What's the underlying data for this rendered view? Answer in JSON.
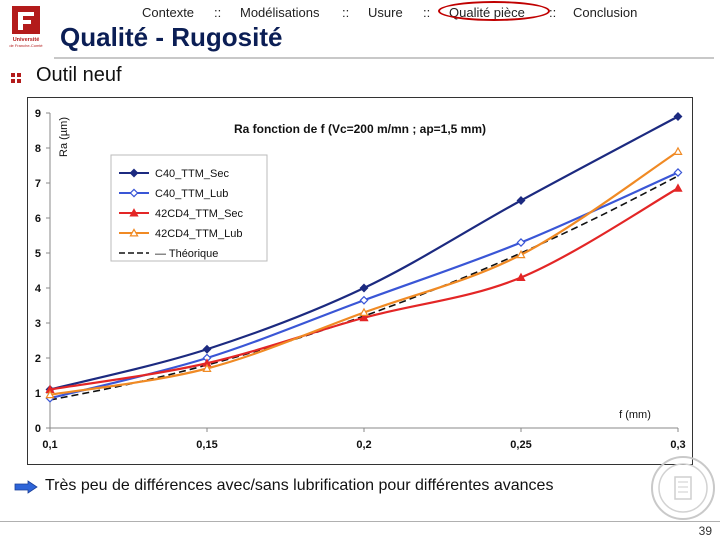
{
  "nav": {
    "items": [
      "Contexte",
      "Modélisations",
      "Usure",
      "Qualité pièce",
      "Conclusion"
    ],
    "separator": "::"
  },
  "title": "Qualité - Rugosité",
  "subtitle": "Outil neuf",
  "logo_text": [
    "Université",
    "de Franche-Comté"
  ],
  "conclusion": "Très peu de différences avec/sans lubrification pour différentes avances",
  "page_number": "39",
  "chart_data": {
    "type": "line",
    "title": "Ra fonction de f (Vc=200 m/mn ; ap=1,5 mm)",
    "xlabel": "f (mm)",
    "ylabel": "Ra (µm)",
    "xlim": [
      0.1,
      0.3
    ],
    "ylim": [
      0,
      9
    ],
    "x_ticks": [
      "0,1",
      "0,15",
      "0,2",
      "0,25",
      "0,3"
    ],
    "y_ticks": [
      "0",
      "1",
      "2",
      "3",
      "4",
      "5",
      "6",
      "7",
      "8",
      "9"
    ],
    "grid": false,
    "legend_position": "top-left",
    "series": [
      {
        "name": "C40_TTM_Sec",
        "color": "#1c2a80",
        "marker": "diamond",
        "dashed": false,
        "x": [
          0.1,
          0.15,
          0.2,
          0.25,
          0.3
        ],
        "values": [
          1.1,
          2.25,
          4.0,
          6.5,
          8.9
        ]
      },
      {
        "name": "C40_TTM_Lub",
        "color": "#3a56d6",
        "marker": "diamond-open",
        "dashed": false,
        "x": [
          0.1,
          0.15,
          0.2,
          0.25,
          0.3
        ],
        "values": [
          0.85,
          2.0,
          3.65,
          5.3,
          7.3
        ]
      },
      {
        "name": "42CD4_TTM_Sec",
        "color": "#e32626",
        "marker": "triangle",
        "dashed": false,
        "x": [
          0.1,
          0.15,
          0.2,
          0.25,
          0.3
        ],
        "values": [
          1.1,
          1.85,
          3.15,
          4.3,
          6.85
        ]
      },
      {
        "name": "42CD4_TTM_Lub",
        "color": "#f08a24",
        "marker": "triangle-open",
        "dashed": false,
        "x": [
          0.1,
          0.15,
          0.2,
          0.25,
          0.3
        ],
        "values": [
          0.95,
          1.7,
          3.3,
          4.95,
          7.9
        ]
      },
      {
        "name": "— Théorique",
        "color": "#111111",
        "marker": "none",
        "dashed": true,
        "x": [
          0.1,
          0.125,
          0.15,
          0.175,
          0.2,
          0.225,
          0.25,
          0.275,
          0.3
        ],
        "values": [
          0.8,
          1.25,
          1.8,
          2.45,
          3.2,
          4.05,
          5.0,
          6.05,
          7.2
        ]
      }
    ]
  },
  "colors": {
    "title": "#0b1e55",
    "highlight": "#c00000",
    "logo": "#b31b1b"
  }
}
